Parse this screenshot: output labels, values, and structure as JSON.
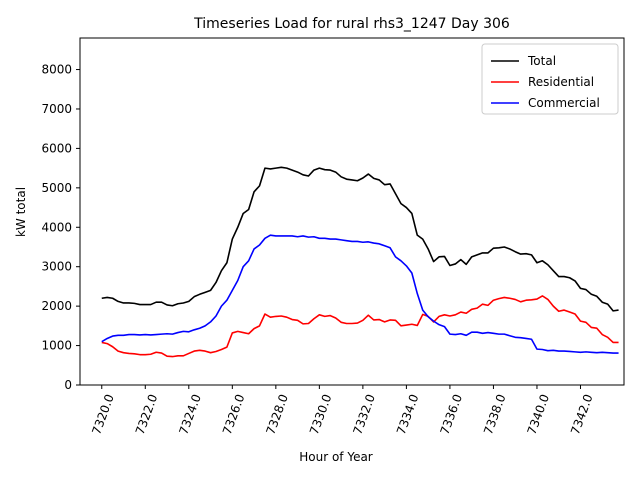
{
  "chart_data": {
    "type": "line",
    "title": "Timeseries Load for rural rhs3_1247  Day 306",
    "xlabel": "Hour of Year",
    "ylabel": "kW total",
    "xlim": [
      7319.0,
      7344.0
    ],
    "ylim": [
      0,
      8800
    ],
    "xticks": [
      7320,
      7322,
      7324,
      7326,
      7328,
      7330,
      7332,
      7334,
      7336,
      7338,
      7340,
      7342
    ],
    "xtick_labels": [
      "7320.0",
      "7322.0",
      "7324.0",
      "7326.0",
      "7328.0",
      "7330.0",
      "7332.0",
      "7334.0",
      "7336.0",
      "7338.0",
      "7340.0",
      "7342.0"
    ],
    "yticks": [
      0,
      1000,
      2000,
      3000,
      4000,
      5000,
      6000,
      7000,
      8000
    ],
    "ytick_labels": [
      "0",
      "1000",
      "2000",
      "3000",
      "4000",
      "5000",
      "6000",
      "7000",
      "8000"
    ],
    "legend_position": "top-right",
    "grid": false,
    "x_start": 7320.0,
    "x_step": 0.25,
    "series": [
      {
        "name": "Total",
        "color": "#000000",
        "values": [
          2200,
          2220,
          2200,
          2120,
          2080,
          2080,
          2070,
          2040,
          2040,
          2040,
          2100,
          2100,
          2030,
          2010,
          2060,
          2080,
          2120,
          2240,
          2300,
          2350,
          2400,
          2600,
          2900,
          3100,
          3700,
          4000,
          4350,
          4450,
          4900,
          5050,
          5500,
          5480,
          5500,
          5520,
          5500,
          5450,
          5400,
          5330,
          5300,
          5450,
          5500,
          5460,
          5450,
          5400,
          5280,
          5220,
          5200,
          5180,
          5250,
          5350,
          5240,
          5200,
          5080,
          5100,
          4850,
          4600,
          4500,
          4350,
          3800,
          3700,
          3450,
          3130,
          3250,
          3260,
          3030,
          3070,
          3180,
          3060,
          3250,
          3300,
          3350,
          3350,
          3470,
          3480,
          3500,
          3450,
          3380,
          3320,
          3330,
          3300,
          3100,
          3150,
          3050,
          2900,
          2750,
          2750,
          2720,
          2640,
          2450,
          2420,
          2300,
          2250,
          2100,
          2050,
          1880,
          1900
        ]
      },
      {
        "name": "Residential",
        "color": "#ff0000",
        "values": [
          1080,
          1050,
          970,
          860,
          820,
          800,
          790,
          770,
          770,
          780,
          830,
          810,
          730,
          720,
          740,
          740,
          800,
          860,
          880,
          860,
          820,
          850,
          900,
          960,
          1320,
          1360,
          1330,
          1300,
          1430,
          1500,
          1800,
          1720,
          1740,
          1750,
          1720,
          1660,
          1640,
          1550,
          1560,
          1680,
          1780,
          1740,
          1760,
          1700,
          1590,
          1560,
          1560,
          1570,
          1640,
          1770,
          1650,
          1660,
          1600,
          1650,
          1640,
          1500,
          1520,
          1540,
          1510,
          1790,
          1740,
          1600,
          1740,
          1780,
          1750,
          1780,
          1850,
          1820,
          1920,
          1950,
          2050,
          2020,
          2150,
          2190,
          2220,
          2200,
          2170,
          2110,
          2150,
          2160,
          2180,
          2260,
          2170,
          2000,
          1870,
          1900,
          1850,
          1800,
          1620,
          1590,
          1460,
          1440,
          1280,
          1210,
          1080,
          1080
        ]
      },
      {
        "name": "Commercial",
        "color": "#0000ff",
        "values": [
          1100,
          1180,
          1240,
          1260,
          1260,
          1280,
          1280,
          1270,
          1280,
          1270,
          1280,
          1290,
          1300,
          1290,
          1330,
          1360,
          1350,
          1400,
          1440,
          1500,
          1600,
          1750,
          2000,
          2150,
          2400,
          2650,
          3000,
          3150,
          3450,
          3550,
          3720,
          3800,
          3780,
          3780,
          3780,
          3780,
          3760,
          3780,
          3750,
          3760,
          3720,
          3720,
          3700,
          3700,
          3680,
          3660,
          3640,
          3640,
          3620,
          3630,
          3600,
          3580,
          3530,
          3480,
          3250,
          3150,
          3020,
          2840,
          2320,
          1900,
          1730,
          1620,
          1530,
          1480,
          1290,
          1280,
          1300,
          1260,
          1340,
          1340,
          1310,
          1330,
          1310,
          1290,
          1290,
          1250,
          1210,
          1200,
          1180,
          1160,
          910,
          900,
          870,
          880,
          860,
          860,
          850,
          840,
          830,
          840,
          830,
          820,
          830,
          820,
          810,
          810
        ]
      }
    ]
  }
}
